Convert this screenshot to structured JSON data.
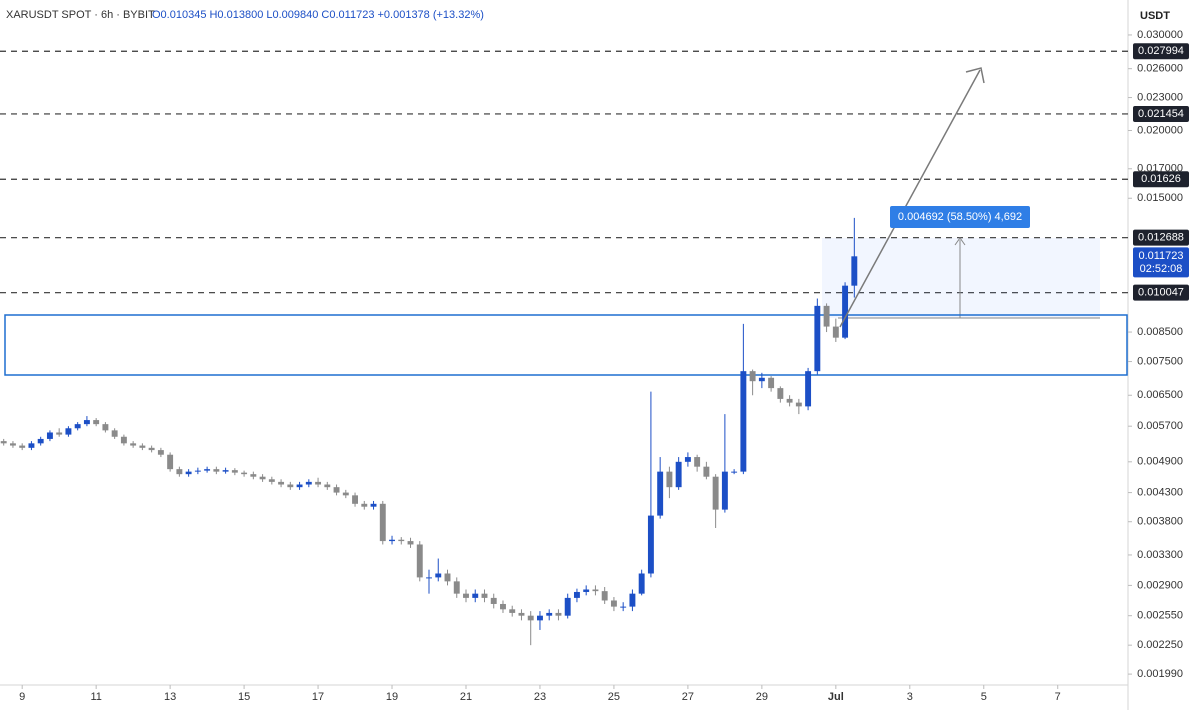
{
  "chart_data": {
    "type": "candlestick",
    "title": "XARUSDT SPOT · 6h · BYBIT",
    "subtitle": "O0.010345 H0.013800 L0.009840 C0.011723 +0.001378 (+13.32%)",
    "y_unit": "USDT",
    "log_scale": true,
    "up_color": "#1c4fc6",
    "down_color": "#8a8a8a",
    "x": [
      8.5,
      8.75,
      9,
      9.25,
      9.5,
      9.75,
      10,
      10.25,
      10.5,
      10.75,
      11,
      11.25,
      11.5,
      11.75,
      12,
      12.25,
      12.5,
      12.75,
      13,
      13.25,
      13.5,
      13.75,
      14,
      14.25,
      14.5,
      14.75,
      15,
      15.25,
      15.5,
      15.75,
      16,
      16.25,
      16.5,
      16.75,
      17,
      17.25,
      17.5,
      17.75,
      18,
      18.25,
      18.5,
      18.75,
      19,
      19.25,
      19.5,
      19.75,
      20,
      20.25,
      20.5,
      20.75,
      21,
      21.25,
      21.5,
      21.75,
      22,
      22.25,
      22.5,
      22.75,
      23,
      23.25,
      23.5,
      23.75,
      24,
      24.25,
      24.5,
      24.75,
      25,
      25.25,
      25.5,
      25.75,
      26,
      26.25,
      26.5,
      26.75,
      27,
      27.25,
      27.5,
      27.75,
      28,
      28.25,
      28.5,
      28.75,
      29,
      29.25,
      29.5,
      29.75,
      30,
      30.25,
      30.5,
      30.75,
      31,
      31.25,
      31.5
    ],
    "open": [
      0.00535,
      0.0053,
      0.00525,
      0.0052,
      0.0053,
      0.0054,
      0.00555,
      0.0055,
      0.00565,
      0.00575,
      0.00585,
      0.00575,
      0.0056,
      0.00545,
      0.0053,
      0.00525,
      0.0052,
      0.00515,
      0.00505,
      0.00475,
      0.00465,
      0.0047,
      0.00472,
      0.00475,
      0.0047,
      0.00473,
      0.00468,
      0.00465,
      0.0046,
      0.00455,
      0.0045,
      0.00445,
      0.0044,
      0.00445,
      0.0045,
      0.00445,
      0.0044,
      0.0043,
      0.00425,
      0.0041,
      0.00405,
      0.0041,
      0.0035,
      0.00352,
      0.0035,
      0.00345,
      0.003,
      0.003,
      0.00305,
      0.00295,
      0.0028,
      0.00275,
      0.0028,
      0.00275,
      0.00268,
      0.00262,
      0.00258,
      0.00255,
      0.0025,
      0.00255,
      0.00258,
      0.00255,
      0.00275,
      0.00282,
      0.00285,
      0.00283,
      0.00272,
      0.00265,
      0.00265,
      0.0028,
      0.00305,
      0.0039,
      0.0047,
      0.0044,
      0.0049,
      0.005,
      0.0048,
      0.0046,
      0.004,
      0.0047,
      0.0047,
      0.0072,
      0.0069,
      0.007,
      0.0067,
      0.0064,
      0.0063,
      0.0062,
      0.0072,
      0.0095,
      0.0087,
      0.0083,
      0.01035
    ],
    "high": [
      0.0054,
      0.00535,
      0.0053,
      0.00535,
      0.00545,
      0.0056,
      0.00565,
      0.0057,
      0.0058,
      0.00595,
      0.0059,
      0.0058,
      0.00565,
      0.0055,
      0.00535,
      0.0053,
      0.00525,
      0.0052,
      0.0051,
      0.0048,
      0.00475,
      0.00478,
      0.0048,
      0.0048,
      0.00478,
      0.00477,
      0.00472,
      0.0047,
      0.00465,
      0.0046,
      0.00455,
      0.0045,
      0.0045,
      0.00455,
      0.00458,
      0.0045,
      0.00445,
      0.00435,
      0.0043,
      0.00415,
      0.00415,
      0.00415,
      0.00358,
      0.00356,
      0.00355,
      0.0035,
      0.0031,
      0.00325,
      0.0031,
      0.003,
      0.00285,
      0.00285,
      0.00285,
      0.0028,
      0.00272,
      0.00266,
      0.00262,
      0.0026,
      0.0026,
      0.00262,
      0.00262,
      0.0028,
      0.00286,
      0.0029,
      0.0029,
      0.00288,
      0.00276,
      0.0027,
      0.00285,
      0.0031,
      0.0066,
      0.005,
      0.0048,
      0.005,
      0.0051,
      0.00505,
      0.0049,
      0.00465,
      0.006,
      0.00475,
      0.0088,
      0.00725,
      0.00715,
      0.00705,
      0.00675,
      0.0065,
      0.0064,
      0.0073,
      0.0098,
      0.0096,
      0.009,
      0.0105,
      0.0138
    ],
    "low": [
      0.00525,
      0.0052,
      0.00515,
      0.00515,
      0.00525,
      0.00535,
      0.00545,
      0.00545,
      0.0056,
      0.0057,
      0.0057,
      0.00555,
      0.0054,
      0.00525,
      0.0052,
      0.00515,
      0.0051,
      0.005,
      0.0047,
      0.0046,
      0.0046,
      0.00465,
      0.00468,
      0.00465,
      0.00466,
      0.00463,
      0.0046,
      0.00455,
      0.0045,
      0.00445,
      0.0044,
      0.00435,
      0.00435,
      0.0044,
      0.0044,
      0.00435,
      0.00425,
      0.0042,
      0.00405,
      0.004,
      0.004,
      0.00345,
      0.00345,
      0.00345,
      0.0034,
      0.00295,
      0.0028,
      0.00295,
      0.0029,
      0.00275,
      0.0027,
      0.0027,
      0.0027,
      0.00263,
      0.00258,
      0.00254,
      0.0025,
      0.00225,
      0.0024,
      0.0025,
      0.0025,
      0.00252,
      0.0027,
      0.00278,
      0.00278,
      0.00268,
      0.0026,
      0.0026,
      0.0026,
      0.00278,
      0.003,
      0.00385,
      0.0042,
      0.00435,
      0.0048,
      0.0047,
      0.00455,
      0.0037,
      0.00395,
      0.00465,
      0.00465,
      0.0065,
      0.0067,
      0.0066,
      0.0063,
      0.0062,
      0.006,
      0.0061,
      0.0071,
      0.0085,
      0.00815,
      0.00825,
      0.00984
    ],
    "close": [
      0.0053,
      0.00525,
      0.0052,
      0.0053,
      0.0054,
      0.00555,
      0.0055,
      0.00565,
      0.00575,
      0.00585,
      0.00575,
      0.0056,
      0.00545,
      0.0053,
      0.00525,
      0.0052,
      0.00515,
      0.00505,
      0.00475,
      0.00465,
      0.0047,
      0.00472,
      0.00475,
      0.0047,
      0.00473,
      0.00468,
      0.00465,
      0.0046,
      0.00455,
      0.0045,
      0.00445,
      0.0044,
      0.00445,
      0.0045,
      0.00445,
      0.0044,
      0.0043,
      0.00425,
      0.0041,
      0.00405,
      0.0041,
      0.0035,
      0.00352,
      0.0035,
      0.00345,
      0.003,
      0.003,
      0.00305,
      0.00295,
      0.0028,
      0.00275,
      0.0028,
      0.00275,
      0.00268,
      0.00262,
      0.00258,
      0.00255,
      0.0025,
      0.00255,
      0.00258,
      0.00255,
      0.00275,
      0.00282,
      0.00285,
      0.00283,
      0.00272,
      0.00265,
      0.00265,
      0.0028,
      0.00305,
      0.0039,
      0.0047,
      0.0044,
      0.0049,
      0.005,
      0.0048,
      0.0046,
      0.004,
      0.0047,
      0.0047,
      0.0072,
      0.0069,
      0.007,
      0.0067,
      0.0064,
      0.0063,
      0.0062,
      0.0072,
      0.0095,
      0.0087,
      0.0083,
      0.01035,
      0.011723
    ],
    "xlim": [
      8.4,
      38.9
    ],
    "xticks": [
      9,
      11,
      13,
      15,
      17,
      19,
      21,
      23,
      25,
      27,
      29,
      {
        "value": 31,
        "label": "Jul"
      },
      {
        "value": 33,
        "label": "3"
      },
      {
        "value": 35,
        "label": "5"
      },
      {
        "value": 37,
        "label": "7"
      }
    ],
    "ylim": [
      0.0019,
      0.0348
    ],
    "yticks": [
      {
        "value": 0.03,
        "label": "0.030000"
      },
      {
        "value": 0.026,
        "label": "0.026000"
      },
      {
        "value": 0.023,
        "label": "0.023000"
      },
      {
        "value": 0.02,
        "label": "0.020000"
      },
      {
        "value": 0.017,
        "label": "0.017000"
      },
      {
        "value": 0.015,
        "label": "0.015000"
      },
      {
        "value": 0.0085,
        "label": "0.008500"
      },
      {
        "value": 0.0075,
        "label": "0.007500"
      },
      {
        "value": 0.0065,
        "label": "0.006500"
      },
      {
        "value": 0.0057,
        "label": "0.005700"
      },
      {
        "value": 0.0049,
        "label": "0.004900"
      },
      {
        "value": 0.0043,
        "label": "0.004300"
      },
      {
        "value": 0.0038,
        "label": "0.003800"
      },
      {
        "value": 0.0033,
        "label": "0.003300"
      },
      {
        "value": 0.0029,
        "label": "0.002900"
      },
      {
        "value": 0.00255,
        "label": "0.002550"
      },
      {
        "value": 0.00225,
        "label": "0.002250"
      },
      {
        "value": 0.00199,
        "label": "0.001990"
      }
    ],
    "levels": [
      0.027994,
      0.021454,
      0.01626,
      0.012688,
      0.010047
    ],
    "current_price": 0.011723,
    "countdown": "02:52:08",
    "measure_label": "0.004692 (58.50%) 4,692"
  }
}
